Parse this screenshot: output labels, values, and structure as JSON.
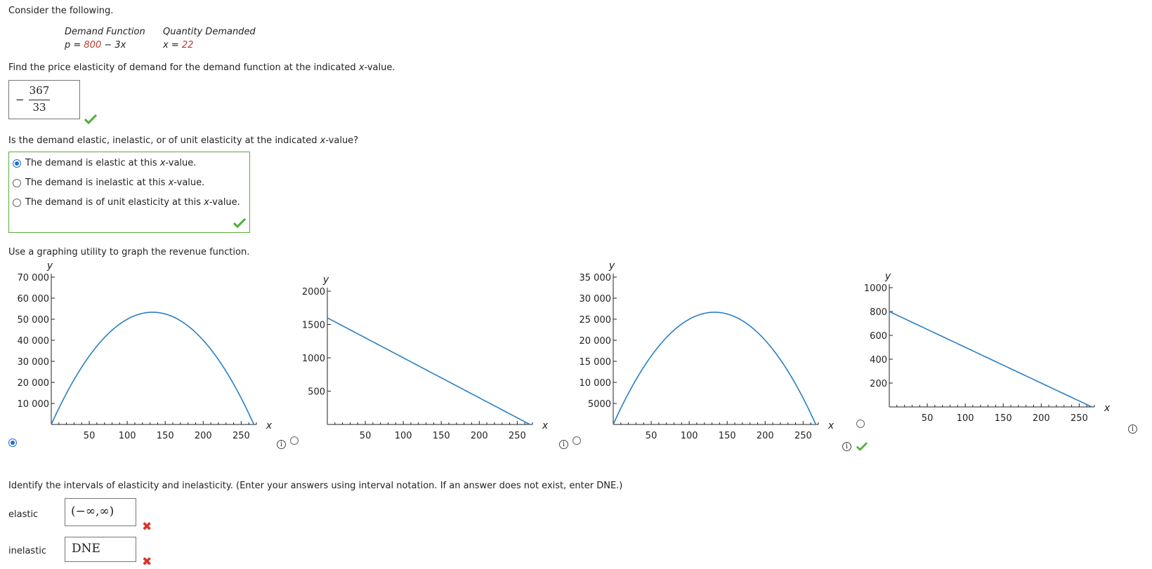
{
  "intro": "Consider the following.",
  "table": {
    "col1_header": "Demand Function",
    "col2_header": "Quantity Demanded",
    "demand_prefix": "p = ",
    "demand_red": "800",
    "demand_suffix": " − 3x",
    "quantity_prefix": "x = ",
    "quantity_red": "22"
  },
  "q1": {
    "prompt_before": "Find the price elasticity of demand for the demand function at the indicated ",
    "prompt_var": "x",
    "prompt_after": "-value.",
    "answer_sign": "−",
    "answer_numerator": "367",
    "answer_denominator": "33"
  },
  "q2": {
    "prompt_before": "Is the demand elastic, inelastic, or of unit elasticity at the indicated ",
    "prompt_var": "x",
    "prompt_after": "-value?",
    "options": [
      {
        "before": "The demand is elastic at this ",
        "var": "x",
        "after": "-value.",
        "selected": true
      },
      {
        "before": "The demand is inelastic at this ",
        "var": "x",
        "after": "-value.",
        "selected": false
      },
      {
        "before": "The demand is of unit elasticity at this ",
        "var": "x",
        "after": "-value.",
        "selected": false
      }
    ]
  },
  "q3": {
    "prompt": "Use a graphing utility to graph the revenue function."
  },
  "graphs": {
    "colors": {
      "curve": "#2a7fc4",
      "axis": "#222"
    },
    "g1": {
      "type": "line",
      "ylabel": "y",
      "xlabel": "x",
      "yticks": [
        "70 000",
        "60 000",
        "50 000",
        "40 000",
        "30 000",
        "20 000",
        "10 000"
      ],
      "xticks": [
        "50",
        "100",
        "150",
        "200",
        "250"
      ],
      "xlim": [
        0,
        270
      ],
      "ylim": [
        0,
        70000
      ],
      "curve": "800x - 3x^2",
      "selected": true
    },
    "g2": {
      "type": "line",
      "ylabel": "y",
      "xlabel": "x",
      "yticks": [
        "2000",
        "1500",
        "1000",
        "500"
      ],
      "xticks": [
        "50",
        "100",
        "150",
        "200",
        "250"
      ],
      "xlim": [
        0,
        270
      ],
      "ylim": [
        0,
        2000
      ],
      "curve": "1600 - 6x",
      "selected": false
    },
    "g3": {
      "type": "line",
      "ylabel": "y",
      "xlabel": "x",
      "yticks": [
        "35 000",
        "30 000",
        "25 000",
        "20 000",
        "15 000",
        "10 000",
        "5000"
      ],
      "xticks": [
        "50",
        "100",
        "150",
        "200",
        "250"
      ],
      "xlim": [
        0,
        270
      ],
      "ylim": [
        0,
        35000
      ],
      "curve": "400x - 1.5x^2",
      "selected": false
    },
    "g4": {
      "type": "line",
      "ylabel": "y",
      "xlabel": "x",
      "yticks": [
        "1000",
        "800",
        "600",
        "400",
        "200"
      ],
      "xticks": [
        "50",
        "100",
        "150",
        "200",
        "250"
      ],
      "xlim": [
        0,
        270
      ],
      "ylim": [
        0,
        1000
      ],
      "curve": "800 - 3x",
      "selected": false
    }
  },
  "q4": {
    "prompt": "Identify the intervals of elasticity and inelasticity. (Enter your answers using interval notation. If an answer does not exist, enter DNE.)",
    "elastic_label": "elastic",
    "elastic_value": "(−∞,∞)",
    "inelastic_label": "inelastic",
    "inelastic_value": "DNE"
  },
  "icons": {
    "info_glyph": "i"
  }
}
